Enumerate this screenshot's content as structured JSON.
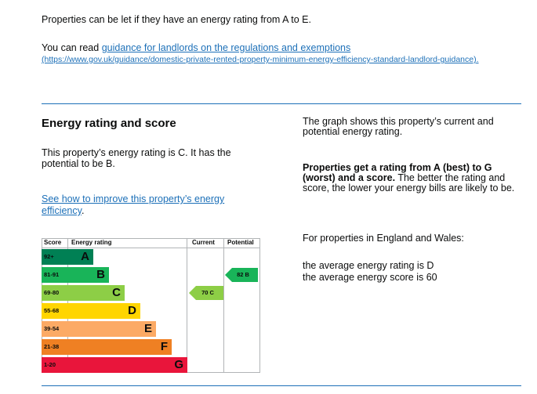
{
  "intro": {
    "text": "Properties can be let if they have an energy rating from A to E.",
    "guidance_prefix": "You can read ",
    "guidance_link": "guidance for landlords on the regulations and exemptions",
    "guidance_url": "(https://www.gov.uk/guidance/domestic-private-rented-property-minimum-energy-efficiency-standard-landlord-guidance)",
    "guidance_suffix": "."
  },
  "energy": {
    "heading": "Energy rating and score",
    "summary": "This property’s energy rating is C. It has the potential to be B.",
    "improve_link": "See how to improve this property’s energy efficiency",
    "improve_suffix": "."
  },
  "chart_data": {
    "type": "table",
    "headers": {
      "score": "Score",
      "rating": "Energy rating",
      "current": "Current",
      "potential": "Potential"
    },
    "bands": [
      {
        "score": "92+",
        "letter": "A",
        "color": "#008054"
      },
      {
        "score": "81-91",
        "letter": "B",
        "color": "#19b459"
      },
      {
        "score": "69-80",
        "letter": "C",
        "color": "#8dce46"
      },
      {
        "score": "55-68",
        "letter": "D",
        "color": "#ffd500"
      },
      {
        "score": "39-54",
        "letter": "E",
        "color": "#fcaa65"
      },
      {
        "score": "21-38",
        "letter": "F",
        "color": "#ef8023"
      },
      {
        "score": "1-20",
        "letter": "G",
        "color": "#e9153b"
      }
    ],
    "current": {
      "score": 70,
      "letter": "C",
      "label": "70  C",
      "color": "#8dce46"
    },
    "potential": {
      "score": 82,
      "letter": "B",
      "label": "82  B",
      "color": "#19b459"
    }
  },
  "side": {
    "graph_text": "The graph shows this property’s current and potential energy rating.",
    "bold_text": "Properties get a rating from A (best) to G (worst) and a score.",
    "rest_text": " The better the rating and score, the lower your energy bills are likely to be.",
    "region_text": "For properties in England and Wales:",
    "avg_rating": "the average energy rating is D",
    "avg_score": "the average energy score is 60"
  }
}
